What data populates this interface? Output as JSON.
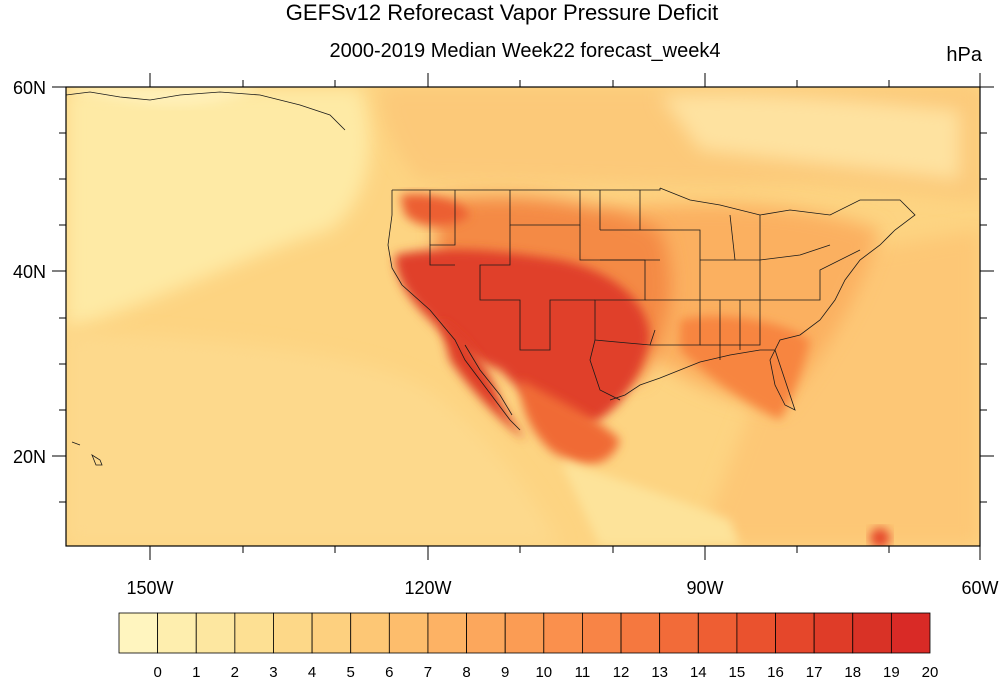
{
  "title": "GEFSv12 Reforecast Vapor Pressure Deficit",
  "subtitle": "2000-2019 Median Week22 forecast_week4",
  "units": "hPa",
  "map": {
    "lat_labels": [
      "60N",
      "40N",
      "20N"
    ],
    "lon_labels": [
      "150W",
      "120W",
      "90W",
      "60W"
    ],
    "lat_range": [
      10,
      60
    ],
    "lon_range": [
      -160,
      -60
    ]
  },
  "colorbar": {
    "labels": [
      "0",
      "1",
      "2",
      "3",
      "4",
      "5",
      "6",
      "7",
      "8",
      "9",
      "10",
      "11",
      "12",
      "13",
      "14",
      "15",
      "16",
      "17",
      "18",
      "19",
      "20"
    ],
    "colors": [
      "#fff5bf",
      "#feeeae",
      "#fde7a0",
      "#fde093",
      "#fdd888",
      "#fdd07f",
      "#fdc775",
      "#fdbd6c",
      "#fdb264",
      "#fca75c",
      "#fb9c54",
      "#fa904d",
      "#f88446",
      "#f5783f",
      "#f26b39",
      "#ee5e33",
      "#ea522e",
      "#e5472b",
      "#df3c28",
      "#d93226",
      "#d92a26"
    ]
  }
}
